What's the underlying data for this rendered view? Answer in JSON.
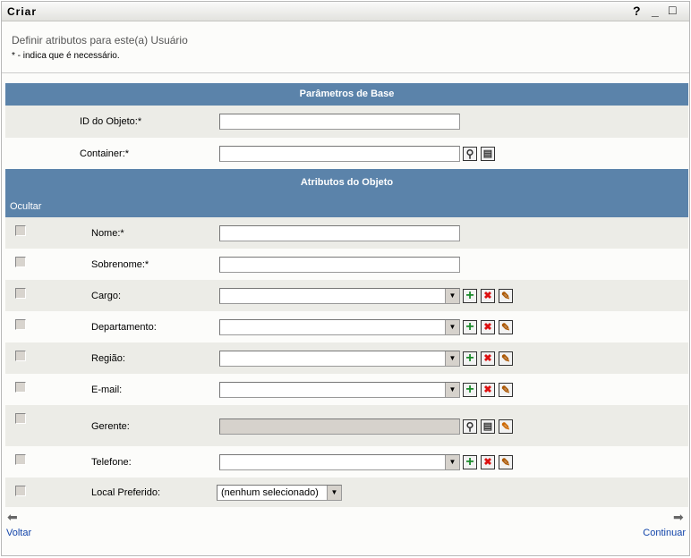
{
  "window": {
    "title": "Criar",
    "help": "?",
    "minimize": "_",
    "maximize": "□"
  },
  "intro": {
    "heading": "Definir atributos para este(a) Usuário",
    "note": "* - indica que é necessário."
  },
  "base": {
    "header": "Parâmetros de Base",
    "rows": [
      {
        "label": "ID do Objeto:*",
        "type": "text",
        "value": ""
      },
      {
        "label": "Container:*",
        "type": "text",
        "value": "",
        "icons": [
          "search-icon",
          "browse-tree-icon"
        ]
      }
    ]
  },
  "attrs": {
    "header": "Atributos do Objeto",
    "hide_label": "Ocultar",
    "rows": [
      {
        "label": "Nome:*",
        "type": "text",
        "value": "",
        "hidden": false
      },
      {
        "label": "Sobrenome:*",
        "type": "text",
        "value": "",
        "hidden": false
      },
      {
        "label": "Cargo:",
        "type": "multi",
        "value": "",
        "hidden": false,
        "icons": [
          "add-icon",
          "delete-icon",
          "edit-icon"
        ]
      },
      {
        "label": "Departamento:",
        "type": "multi",
        "value": "",
        "hidden": false,
        "icons": [
          "add-icon",
          "delete-icon",
          "edit-icon"
        ]
      },
      {
        "label": "Região:",
        "type": "multi",
        "value": "",
        "hidden": false,
        "icons": [
          "add-icon",
          "delete-icon",
          "edit-icon"
        ]
      },
      {
        "label": "E-mail:",
        "type": "multi",
        "value": "",
        "hidden": false,
        "icons": [
          "add-icon",
          "delete-icon",
          "edit-icon"
        ]
      },
      {
        "label": "Gerente:",
        "type": "disabled",
        "value": "",
        "hidden": false,
        "icons": [
          "search-icon",
          "browse-tree-icon",
          "clear-icon"
        ]
      },
      {
        "label": "Telefone:",
        "type": "multi",
        "value": "",
        "hidden": false,
        "icons": [
          "add-icon",
          "delete-icon",
          "edit-icon"
        ]
      },
      {
        "label": "Local Preferido:",
        "type": "select",
        "value": "(nenhum selecionado)",
        "hidden": false
      }
    ]
  },
  "nav": {
    "back": "Voltar",
    "next": "Continuar"
  },
  "colors": {
    "header": "#5b83aa",
    "row_alt": "#ecece7",
    "link": "#1144aa",
    "add": "#1a8a2a",
    "delete": "#dd1111"
  }
}
